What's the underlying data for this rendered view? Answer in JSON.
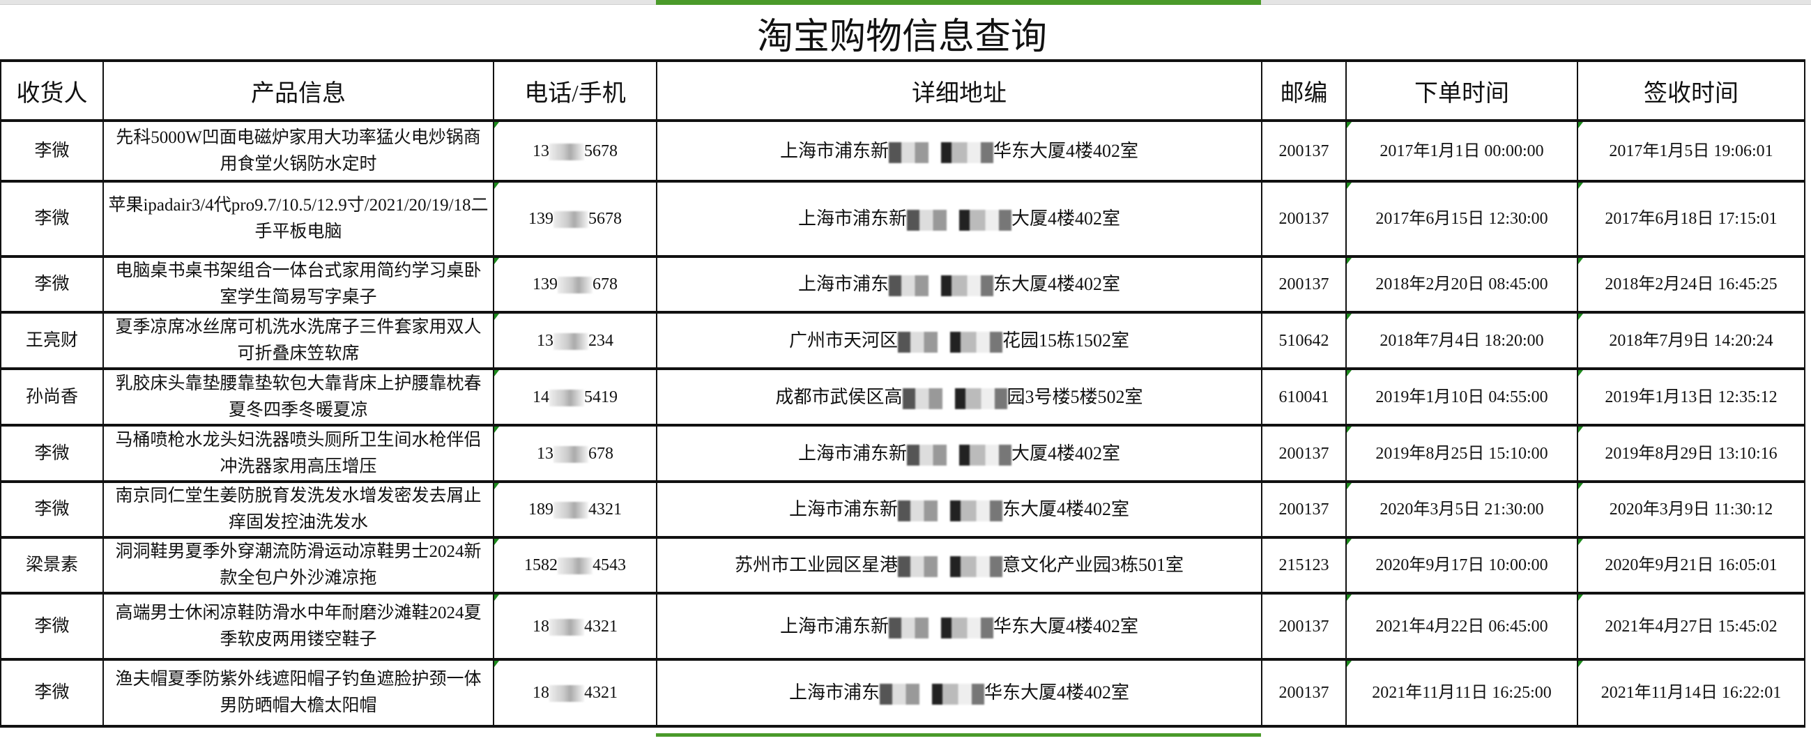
{
  "title": "淘宝购物信息查询",
  "colors": {
    "accent": "#4a9a2a",
    "cell_marker": "#1c8a1c"
  },
  "headers": [
    "收货人",
    "产品信息",
    "电话/手机",
    "详细地址",
    "邮编",
    "下单时间",
    "签收时间"
  ],
  "rows": [
    {
      "name": "李微",
      "product": "先科5000W凹面电磁炉家用大功率猛火电炒锅商用食堂火锅防水定时",
      "phone_prefix": "13",
      "phone_suffix": "5678",
      "addr_prefix": "上海市浦东新",
      "addr_suffix": "华东大厦4楼402室",
      "zip": "200137",
      "order": "2017年1月1日 00:00:00",
      "sign": "2017年1月5日 19:06:01"
    },
    {
      "name": "李微",
      "product": "苹果ipadair3/4代pro9.7/10.5/12.9寸/2021/20/19/18二手平板电脑",
      "phone_prefix": "139",
      "phone_suffix": "5678",
      "addr_prefix": "上海市浦东新",
      "addr_suffix": "大厦4楼402室",
      "zip": "200137",
      "order": "2017年6月15日 12:30:00",
      "sign": "2017年6月18日 17:15:01"
    },
    {
      "name": "李微",
      "product": "电脑桌书桌书架组合一体台式家用简约学习桌卧室学生简易写字桌子",
      "phone_prefix": "139",
      "phone_suffix": "678",
      "addr_prefix": "上海市浦东",
      "addr_suffix": "东大厦4楼402室",
      "zip": "200137",
      "order": "2018年2月20日 08:45:00",
      "sign": "2018年2月24日 16:45:25"
    },
    {
      "name": "王亮财",
      "product": "夏季凉席冰丝席可机洗水洗席子三件套家用双人可折叠床笠软席",
      "phone_prefix": "13",
      "phone_suffix": "234",
      "addr_prefix": "广州市天河区",
      "addr_suffix": "花园15栋1502室",
      "zip": "510642",
      "order": "2018年7月4日 18:20:00",
      "sign": "2018年7月9日 14:20:24"
    },
    {
      "name": "孙尚香",
      "product": "乳胶床头靠垫腰靠垫软包大靠背床上护腰靠枕春夏冬四季冬暖夏凉",
      "phone_prefix": "14",
      "phone_suffix": "5419",
      "addr_prefix": "成都市武侯区高",
      "addr_suffix": "园3号楼5楼502室",
      "zip": "610041",
      "order": "2019年1月10日 04:55:00",
      "sign": "2019年1月13日 12:35:12"
    },
    {
      "name": "李微",
      "product": "马桶喷枪水龙头妇洗器喷头厕所卫生间水枪伴侣冲洗器家用高压增压",
      "phone_prefix": "13",
      "phone_suffix": "678",
      "addr_prefix": "上海市浦东新",
      "addr_suffix": "大厦4楼402室",
      "zip": "200137",
      "order": "2019年8月25日 15:10:00",
      "sign": "2019年8月29日 13:10:16"
    },
    {
      "name": "李微",
      "product": "南京同仁堂生姜防脱育发洗发水增发密发去屑止痒固发控油洗发水",
      "phone_prefix": "189",
      "phone_suffix": "4321",
      "addr_prefix": "上海市浦东新",
      "addr_suffix": "东大厦4楼402室",
      "zip": "200137",
      "order": "2020年3月5日 21:30:00",
      "sign": "2020年3月9日 11:30:12"
    },
    {
      "name": "梁景素",
      "product": "洞洞鞋男夏季外穿潮流防滑运动凉鞋男士2024新款全包户外沙滩凉拖",
      "phone_prefix": "1582",
      "phone_suffix": "4543",
      "addr_prefix": "苏州市工业园区星港",
      "addr_suffix": "意文化产业园3栋501室",
      "zip": "215123",
      "order": "2020年9月17日 10:00:00",
      "sign": "2020年9月21日 16:05:01"
    },
    {
      "name": "李微",
      "product": "高端男士休闲凉鞋防滑水中年耐磨沙滩鞋2024夏季软皮两用镂空鞋子",
      "phone_prefix": "18",
      "phone_suffix": "4321",
      "addr_prefix": "上海市浦东新",
      "addr_suffix": "华东大厦4楼402室",
      "zip": "200137",
      "order": "2021年4月22日 06:45:00",
      "sign": "2021年4月27日 15:45:02"
    },
    {
      "name": "李微",
      "product": "渔夫帽夏季防紫外线遮阳帽子钓鱼遮脸护颈一体男防晒帽大檐太阳帽",
      "phone_prefix": "18",
      "phone_suffix": "4321",
      "addr_prefix": "上海市浦东",
      "addr_suffix": "华东大厦4楼402室",
      "zip": "200137",
      "order": "2021年11月11日 16:25:00",
      "sign": "2021年11月14日 16:22:01"
    }
  ]
}
